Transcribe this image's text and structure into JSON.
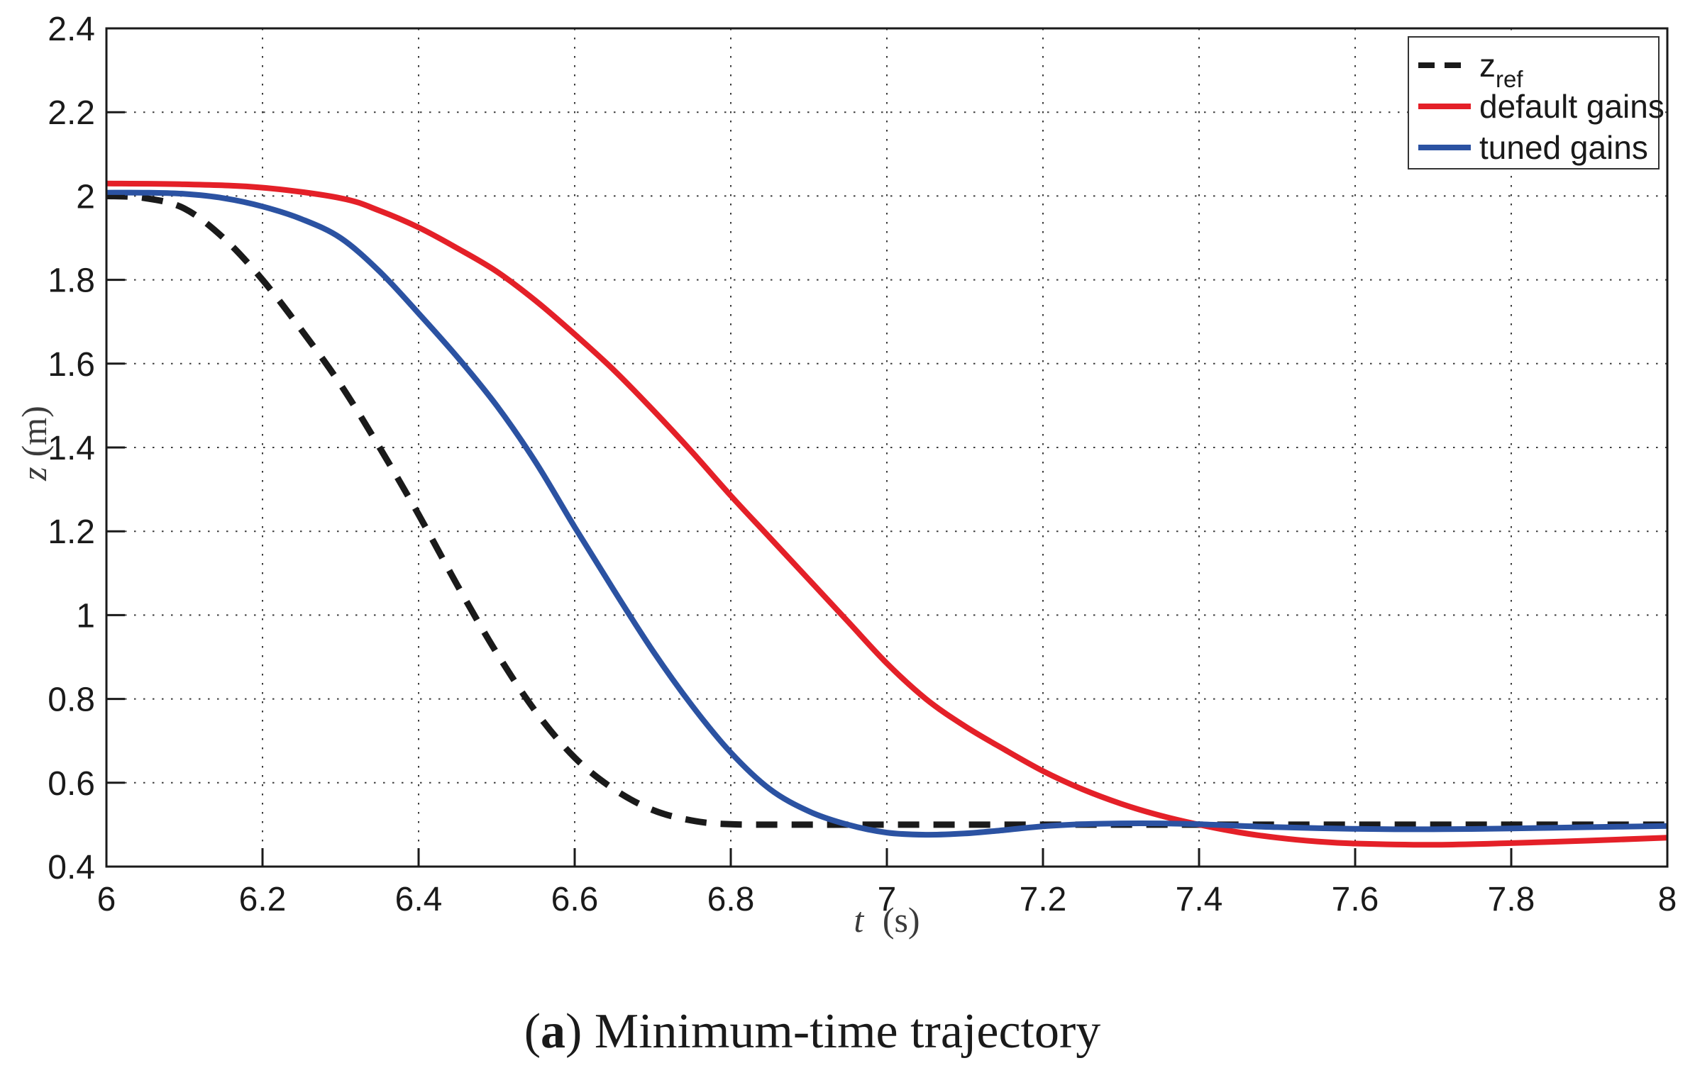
{
  "figure": {
    "caption": {
      "open": "(",
      "letter": "a",
      "rest": ") Minimum-time trajectory"
    }
  },
  "chart_data": {
    "type": "line",
    "title": "",
    "xlabel": {
      "var": "t",
      "unit": "(s)"
    },
    "ylabel": {
      "var": "z",
      "unit": "(m)"
    },
    "xlim": [
      6,
      8
    ],
    "ylim": [
      0.4,
      2.4
    ],
    "x_ticks": [
      6,
      6.2,
      6.4,
      6.6,
      6.8,
      7,
      7.2,
      7.4,
      7.6,
      7.8,
      8
    ],
    "x_tick_labels": [
      "6",
      "6.2",
      "6.4",
      "6.6",
      "6.8",
      "7",
      "7.2",
      "7.4",
      "7.6",
      "7.8",
      "8"
    ],
    "y_ticks": [
      0.4,
      0.6,
      0.8,
      1,
      1.2,
      1.4,
      1.6,
      1.8,
      2,
      2.2,
      2.4
    ],
    "y_tick_labels": [
      "0.4",
      "0.6",
      "0.8",
      "1",
      "1.2",
      "1.4",
      "1.6",
      "1.8",
      "2",
      "2.2",
      "2.4"
    ],
    "grid": true,
    "grid_style": "dotted",
    "legend_position": "top-right",
    "axis_color": "#1a1a1a",
    "grid_color": "#3a3a3a",
    "series": [
      {
        "name": "z_ref",
        "label_main": "z",
        "label_sub": "ref",
        "color": "#1a1a1a",
        "dashed": true,
        "points": [
          [
            6.0,
            2.0
          ],
          [
            6.05,
            1.995
          ],
          [
            6.1,
            1.97
          ],
          [
            6.15,
            1.9
          ],
          [
            6.2,
            1.8
          ],
          [
            6.25,
            1.68
          ],
          [
            6.3,
            1.55
          ],
          [
            6.35,
            1.4
          ],
          [
            6.4,
            1.24
          ],
          [
            6.45,
            1.07
          ],
          [
            6.5,
            0.91
          ],
          [
            6.55,
            0.77
          ],
          [
            6.6,
            0.66
          ],
          [
            6.65,
            0.585
          ],
          [
            6.7,
            0.535
          ],
          [
            6.75,
            0.51
          ],
          [
            6.8,
            0.501
          ],
          [
            6.9,
            0.5
          ],
          [
            7.0,
            0.5
          ],
          [
            7.2,
            0.5
          ],
          [
            7.4,
            0.5
          ],
          [
            7.6,
            0.5
          ],
          [
            7.8,
            0.5
          ],
          [
            8.0,
            0.5
          ]
        ]
      },
      {
        "name": "default gains",
        "label_main": "default gains",
        "label_sub": "",
        "color": "#e42028",
        "dashed": false,
        "points": [
          [
            6.0,
            2.03
          ],
          [
            6.1,
            2.028
          ],
          [
            6.2,
            2.02
          ],
          [
            6.3,
            1.995
          ],
          [
            6.35,
            1.965
          ],
          [
            6.4,
            1.925
          ],
          [
            6.45,
            1.875
          ],
          [
            6.5,
            1.82
          ],
          [
            6.55,
            1.75
          ],
          [
            6.6,
            1.67
          ],
          [
            6.65,
            1.585
          ],
          [
            6.7,
            1.49
          ],
          [
            6.75,
            1.39
          ],
          [
            6.8,
            1.285
          ],
          [
            6.85,
            1.185
          ],
          [
            6.9,
            1.085
          ],
          [
            6.95,
            0.985
          ],
          [
            7.0,
            0.885
          ],
          [
            7.05,
            0.8
          ],
          [
            7.1,
            0.735
          ],
          [
            7.15,
            0.68
          ],
          [
            7.2,
            0.628
          ],
          [
            7.25,
            0.585
          ],
          [
            7.3,
            0.55
          ],
          [
            7.35,
            0.522
          ],
          [
            7.4,
            0.5
          ],
          [
            7.45,
            0.482
          ],
          [
            7.5,
            0.469
          ],
          [
            7.55,
            0.46
          ],
          [
            7.6,
            0.455
          ],
          [
            7.7,
            0.452
          ],
          [
            7.8,
            0.456
          ],
          [
            7.9,
            0.462
          ],
          [
            8.0,
            0.469
          ]
        ]
      },
      {
        "name": "tuned gains",
        "label_main": "tuned gains",
        "label_sub": "",
        "color": "#2b52a2",
        "dashed": false,
        "points": [
          [
            6.0,
            2.008
          ],
          [
            6.05,
            2.008
          ],
          [
            6.1,
            2.005
          ],
          [
            6.15,
            1.995
          ],
          [
            6.2,
            1.975
          ],
          [
            6.25,
            1.945
          ],
          [
            6.3,
            1.9
          ],
          [
            6.35,
            1.82
          ],
          [
            6.4,
            1.72
          ],
          [
            6.45,
            1.615
          ],
          [
            6.5,
            1.5
          ],
          [
            6.55,
            1.365
          ],
          [
            6.6,
            1.21
          ],
          [
            6.65,
            1.06
          ],
          [
            6.7,
            0.915
          ],
          [
            6.75,
            0.785
          ],
          [
            6.8,
            0.672
          ],
          [
            6.85,
            0.585
          ],
          [
            6.9,
            0.532
          ],
          [
            6.95,
            0.5
          ],
          [
            7.0,
            0.481
          ],
          [
            7.05,
            0.476
          ],
          [
            7.1,
            0.479
          ],
          [
            7.15,
            0.487
          ],
          [
            7.2,
            0.496
          ],
          [
            7.25,
            0.501
          ],
          [
            7.3,
            0.503
          ],
          [
            7.35,
            0.503
          ],
          [
            7.4,
            0.501
          ],
          [
            7.5,
            0.494
          ],
          [
            7.6,
            0.49
          ],
          [
            7.7,
            0.489
          ],
          [
            7.8,
            0.491
          ],
          [
            7.9,
            0.494
          ],
          [
            8.0,
            0.497
          ]
        ]
      }
    ]
  }
}
